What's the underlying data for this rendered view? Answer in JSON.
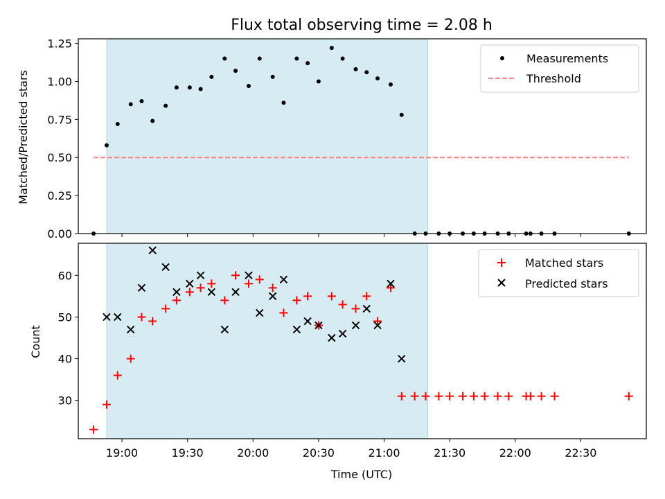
{
  "chart_data": [
    {
      "type": "scatter",
      "title": "Flux total observing time = 2.08 h",
      "xlabel": "",
      "ylabel": "Matched/Predicted stars",
      "ylim": [
        0,
        1.28
      ],
      "yticks": [
        0.0,
        0.25,
        0.5,
        0.75,
        1.0,
        1.25
      ],
      "ytick_labels": [
        "0.00",
        "0.25",
        "0.50",
        "0.75",
        "1.00",
        "1.25"
      ],
      "xlim": [
        "18:40",
        "23:00"
      ],
      "shaded_span": [
        "18:53",
        "21:20"
      ],
      "legend_position": "top-right",
      "series": [
        {
          "name": "Measurements",
          "marker": "dot",
          "color": "#000000",
          "points": [
            [
              "18:47",
              0.0
            ],
            [
              "18:53",
              0.58
            ],
            [
              "18:58",
              0.72
            ],
            [
              "19:04",
              0.85
            ],
            [
              "19:09",
              0.87
            ],
            [
              "19:14",
              0.74
            ],
            [
              "19:20",
              0.84
            ],
            [
              "19:25",
              0.96
            ],
            [
              "19:31",
              0.96
            ],
            [
              "19:36",
              0.95
            ],
            [
              "19:41",
              1.03
            ],
            [
              "19:47",
              1.15
            ],
            [
              "19:52",
              1.07
            ],
            [
              "19:58",
              0.97
            ],
            [
              "20:03",
              1.15
            ],
            [
              "20:09",
              1.03
            ],
            [
              "20:14",
              0.86
            ],
            [
              "20:20",
              1.15
            ],
            [
              "20:25",
              1.12
            ],
            [
              "20:30",
              1.0
            ],
            [
              "20:36",
              1.22
            ],
            [
              "20:41",
              1.15
            ],
            [
              "20:47",
              1.08
            ],
            [
              "20:52",
              1.06
            ],
            [
              "20:57",
              1.02
            ],
            [
              "21:03",
              0.98
            ],
            [
              "21:08",
              0.78
            ],
            [
              "21:14",
              0.0
            ],
            [
              "21:19",
              0.0
            ],
            [
              "21:25",
              0.0
            ],
            [
              "21:30",
              0.0
            ],
            [
              "21:36",
              0.0
            ],
            [
              "21:41",
              0.0
            ],
            [
              "21:46",
              0.0
            ],
            [
              "21:52",
              0.0
            ],
            [
              "21:57",
              0.0
            ],
            [
              "22:05",
              0.0
            ],
            [
              "22:07",
              0.0
            ],
            [
              "22:12",
              0.0
            ],
            [
              "22:18",
              0.0
            ],
            [
              "22:52",
              0.0
            ]
          ]
        },
        {
          "name": "Threshold",
          "style": "dashed",
          "color": "#ff7f7f",
          "points": [
            [
              "18:47",
              0.5
            ],
            [
              "22:52",
              0.5
            ]
          ]
        }
      ]
    },
    {
      "type": "scatter",
      "title": "",
      "xlabel": "Time (UTC)",
      "ylabel": "Count",
      "ylim": [
        20.8,
        67.7
      ],
      "yticks": [
        30,
        40,
        50,
        60
      ],
      "ytick_labels": [
        "30",
        "40",
        "50",
        "60"
      ],
      "xlim": [
        "18:40",
        "23:00"
      ],
      "xticks": [
        "19:00",
        "19:30",
        "20:00",
        "20:30",
        "21:00",
        "21:30",
        "22:00",
        "22:30"
      ],
      "shaded_span": [
        "18:53",
        "21:20"
      ],
      "legend_position": "top-right",
      "series": [
        {
          "name": "Matched stars",
          "marker": "plus",
          "color": "#ff0000",
          "points": [
            [
              "18:47",
              23
            ],
            [
              "18:53",
              29
            ],
            [
              "18:58",
              36
            ],
            [
              "19:04",
              40
            ],
            [
              "19:09",
              50
            ],
            [
              "19:14",
              49
            ],
            [
              "19:20",
              52
            ],
            [
              "19:25",
              54
            ],
            [
              "19:31",
              56
            ],
            [
              "19:36",
              57
            ],
            [
              "19:41",
              58
            ],
            [
              "19:47",
              54
            ],
            [
              "19:52",
              60
            ],
            [
              "19:58",
              58
            ],
            [
              "20:03",
              59
            ],
            [
              "20:09",
              57
            ],
            [
              "20:14",
              51
            ],
            [
              "20:20",
              54
            ],
            [
              "20:25",
              55
            ],
            [
              "20:30",
              48
            ],
            [
              "20:36",
              55
            ],
            [
              "20:41",
              53
            ],
            [
              "20:47",
              52
            ],
            [
              "20:52",
              55
            ],
            [
              "20:57",
              49
            ],
            [
              "21:03",
              57
            ],
            [
              "21:08",
              31
            ],
            [
              "21:14",
              31
            ],
            [
              "21:19",
              31
            ],
            [
              "21:25",
              31
            ],
            [
              "21:30",
              31
            ],
            [
              "21:36",
              31
            ],
            [
              "21:41",
              31
            ],
            [
              "21:46",
              31
            ],
            [
              "21:52",
              31
            ],
            [
              "21:57",
              31
            ],
            [
              "22:05",
              31
            ],
            [
              "22:07",
              31
            ],
            [
              "22:12",
              31
            ],
            [
              "22:18",
              31
            ],
            [
              "22:52",
              31
            ]
          ]
        },
        {
          "name": "Predicted stars",
          "marker": "x",
          "color": "#000000",
          "points": [
            [
              "18:53",
              50
            ],
            [
              "18:58",
              50
            ],
            [
              "19:04",
              47
            ],
            [
              "19:09",
              57
            ],
            [
              "19:14",
              66
            ],
            [
              "19:20",
              62
            ],
            [
              "19:25",
              56
            ],
            [
              "19:31",
              58
            ],
            [
              "19:36",
              60
            ],
            [
              "19:41",
              56
            ],
            [
              "19:47",
              47
            ],
            [
              "19:52",
              56
            ],
            [
              "19:58",
              60
            ],
            [
              "20:03",
              51
            ],
            [
              "20:09",
              55
            ],
            [
              "20:14",
              59
            ],
            [
              "20:20",
              47
            ],
            [
              "20:25",
              49
            ],
            [
              "20:30",
              48
            ],
            [
              "20:36",
              45
            ],
            [
              "20:41",
              46
            ],
            [
              "20:47",
              48
            ],
            [
              "20:52",
              52
            ],
            [
              "20:57",
              48
            ],
            [
              "21:03",
              58
            ],
            [
              "21:08",
              40
            ]
          ]
        }
      ]
    }
  ],
  "colors": {
    "shade": "#add8e6",
    "threshold": "#ff7f7f",
    "matched": "#ff0000",
    "predicted": "#000000",
    "measurements": "#000000"
  }
}
